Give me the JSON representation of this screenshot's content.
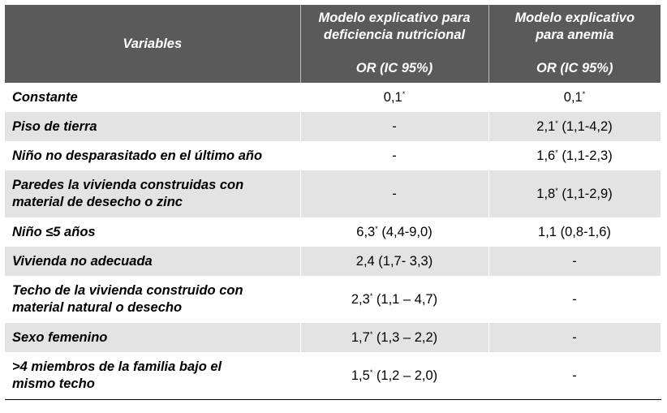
{
  "table": {
    "headers": {
      "variables": "Variables",
      "model1_line1": "Modelo explicativo para",
      "model1_line2": "deficiencia nutricional",
      "model1_sub": "OR (IC 95%)",
      "model2_line1": "Modelo explicativo",
      "model2_line2": "para anemia",
      "model2_sub": "OR (IC 95%)"
    },
    "rows": [
      {
        "label1": "Constante",
        "label2": "",
        "m1": "0,1",
        "m1_sup": "*",
        "m1_ci": "",
        "m2": "0,1",
        "m2_sup": "*",
        "m2_ci": ""
      },
      {
        "label1": "Piso de tierra",
        "label2": "",
        "m1": "-",
        "m1_sup": "",
        "m1_ci": "",
        "m2": "2,1",
        "m2_sup": "*",
        "m2_ci": " (1,1-4,2)"
      },
      {
        "label1": "Niño no desparasitado en el último año",
        "label2": "",
        "m1": "-",
        "m1_sup": "",
        "m1_ci": "",
        "m2": "1,6",
        "m2_sup": "*",
        "m2_ci": " (1,1-2,3)"
      },
      {
        "label1": "Paredes la vivienda construidas con",
        "label2": "material de desecho o zinc",
        "m1": "-",
        "m1_sup": "",
        "m1_ci": "",
        "m2": "1,8",
        "m2_sup": "*",
        "m2_ci": " (1,1-2,9)"
      },
      {
        "label1": "Niño ≤5 años",
        "label2": "",
        "m1": "6,3",
        "m1_sup": "*",
        "m1_ci": " (4,4-9,0)",
        "m2": "1,1 (0,8-1,6)",
        "m2_sup": "",
        "m2_ci": ""
      },
      {
        "label1": "Vivienda no adecuada",
        "label2": "",
        "m1": "2,4 (1,7- 3,3)",
        "m1_sup": "",
        "m1_ci": "",
        "m2": "-",
        "m2_sup": "",
        "m2_ci": ""
      },
      {
        "label1": "Techo de la vivienda construido con",
        "label2": "material natural o desecho",
        "m1": "2,3",
        "m1_sup": "*",
        "m1_ci": " (1,1 – 4,7)",
        "m2": "-",
        "m2_sup": "",
        "m2_ci": ""
      },
      {
        "label1": "Sexo femenino",
        "label2": "",
        "m1": "1,7",
        "m1_sup": "*",
        "m1_ci": " (1,3 – 2,2)",
        "m2": "-",
        "m2_sup": "",
        "m2_ci": ""
      },
      {
        "label1": ">4 miembros de la familia bajo el",
        "label2": "mismo techo",
        "m1": "1,5",
        "m1_sup": "*",
        "m1_ci": " (1,2 – 2,0)",
        "m2": "-",
        "m2_sup": "",
        "m2_ci": ""
      }
    ]
  }
}
